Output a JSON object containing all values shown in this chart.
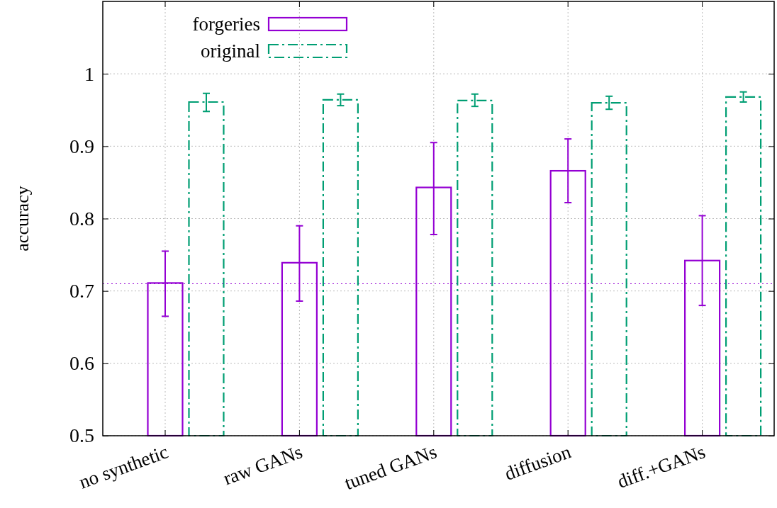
{
  "chart_data": {
    "type": "bar",
    "ylabel": "accuracy",
    "categories": [
      "no synthetic",
      "raw GANs",
      "tuned GANs",
      "diffusion",
      "diff.+GANs"
    ],
    "series": [
      {
        "name": "forgeries",
        "color": "#9400d3",
        "line_style": "solid",
        "values": [
          0.711,
          0.739,
          0.843,
          0.866,
          0.742
        ],
        "errors": [
          [
            0.665,
            0.755
          ],
          [
            0.686,
            0.79
          ],
          [
            0.778,
            0.905
          ],
          [
            0.822,
            0.91
          ],
          [
            0.68,
            0.804
          ]
        ]
      },
      {
        "name": "original",
        "color": "#009e73",
        "line_style": "dashed",
        "values": [
          0.961,
          0.964,
          0.963,
          0.96,
          0.968
        ],
        "errors": [
          [
            0.948,
            0.973
          ],
          [
            0.956,
            0.972
          ],
          [
            0.955,
            0.972
          ],
          [
            0.951,
            0.969
          ],
          [
            0.961,
            0.975
          ]
        ]
      }
    ],
    "ylim": [
      0.5,
      1.1
    ],
    "yticks": [
      0.5,
      0.6,
      0.7,
      0.8,
      0.9,
      1
    ],
    "grid": true,
    "legend": "top left",
    "ref_lines": [
      {
        "axis": "y",
        "value": 0.71,
        "color": "#9400d3",
        "line_style": "dotted"
      }
    ]
  }
}
